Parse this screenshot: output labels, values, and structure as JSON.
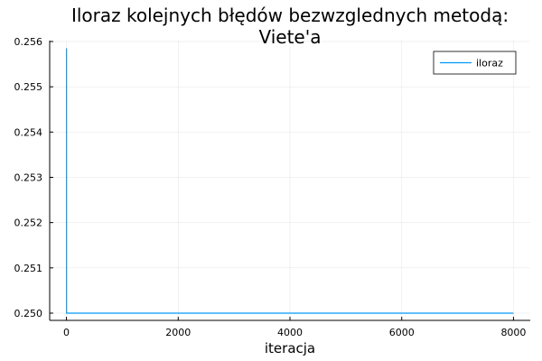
{
  "chart_data": {
    "type": "line",
    "title_lines": [
      "Iloraz kolejnych błędów bezwzglednych metodą:",
      "Viete'a"
    ],
    "xlabel": "iteracja",
    "ylabel": "",
    "xlim": [
      -300,
      8300
    ],
    "ylim": [
      0.24984,
      0.25602
    ],
    "x_ticks": [
      0,
      2000,
      4000,
      6000,
      8000
    ],
    "x_tick_labels": [
      "0",
      "2000",
      "4000",
      "6000",
      "8000"
    ],
    "y_ticks": [
      0.25,
      0.251,
      0.252,
      0.253,
      0.254,
      0.255,
      0.256
    ],
    "y_tick_labels": [
      "0.250",
      "0.251",
      "0.252",
      "0.253",
      "0.254",
      "0.255",
      "0.256"
    ],
    "grid": true,
    "legend_position": "top-right",
    "series": [
      {
        "name": "iloraz",
        "color": "#009AFA",
        "x": [
          1,
          2,
          3,
          10,
          100,
          1000,
          2000,
          4000,
          6000,
          8000
        ],
        "y": [
          0.25585,
          0.25,
          0.25,
          0.25,
          0.25,
          0.25,
          0.25,
          0.25,
          0.25,
          0.25
        ]
      }
    ]
  }
}
